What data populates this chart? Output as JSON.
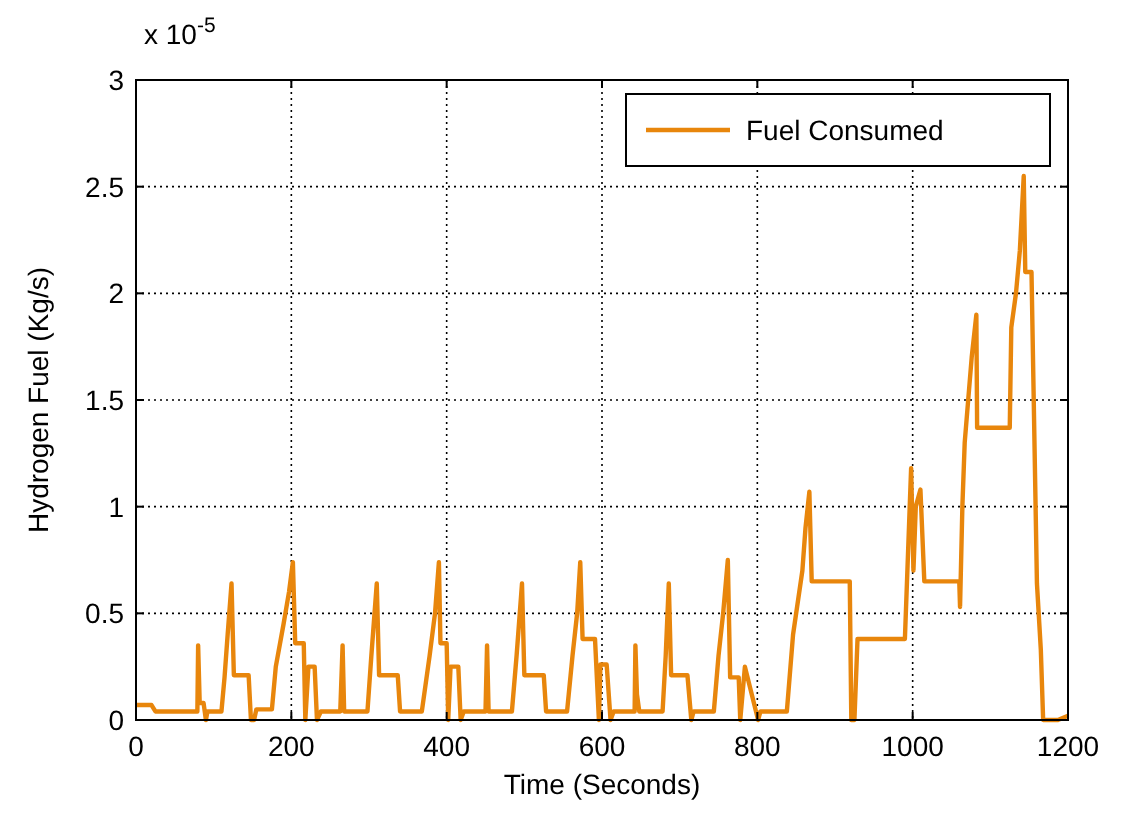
{
  "chart_data": {
    "type": "line",
    "xlabel": "Time (Seconds)",
    "ylabel": "Hydrogen Fuel (Kg/s)",
    "annotations": [
      "x 10$^{-5}$"
    ],
    "xlim": [
      0,
      1200
    ],
    "xticks": [
      0,
      200,
      400,
      600,
      800,
      1000,
      1200
    ],
    "ylim": [
      0,
      3
    ],
    "yticks": [
      0,
      0.5,
      1,
      1.5,
      2,
      2.5,
      3
    ],
    "grid": true,
    "legend": "top right",
    "marker": "none",
    "line_style": "solid",
    "series": [
      {
        "name": "Fuel Consumed",
        "color": "#e8860c",
        "x": [
          0,
          20,
          25,
          79,
          80,
          82,
          87,
          90,
          92,
          110,
          114,
          118,
          123,
          126,
          145,
          148,
          152,
          155,
          175,
          180,
          190,
          197,
          202,
          205,
          216,
          218,
          222,
          230,
          233,
          238,
          263,
          266,
          268,
          298,
          303,
          310,
          313,
          337,
          340,
          368,
          378,
          385,
          390,
          392,
          400,
          402,
          405,
          415,
          418,
          422,
          450,
          452,
          454,
          484,
          490,
          497,
          500,
          525,
          528,
          555,
          562,
          568,
          572,
          575,
          591,
          596,
          598,
          606,
          611,
          615,
          642,
          643,
          645,
          648,
          678,
          682,
          686,
          689,
          710,
          715,
          718,
          744,
          750,
          756,
          762,
          765,
          776,
          778,
          784,
          801,
          804,
          838,
          846,
          858,
          862,
          867,
          870,
          919,
          921,
          925,
          929,
          990,
          998,
          1001,
          1004,
          1010,
          1015,
          1060,
          1061,
          1064,
          1067,
          1076,
          1082,
          1083,
          1125,
          1127,
          1133,
          1138,
          1143,
          1145,
          1153,
          1160,
          1165,
          1168,
          1187,
          1200
        ],
        "values": [
          0.07,
          0.07,
          0.04,
          0.04,
          0.35,
          0.08,
          0.08,
          0,
          0.04,
          0.04,
          0.2,
          0.4,
          0.64,
          0.21,
          0.21,
          0,
          0,
          0.05,
          0.05,
          0.25,
          0.45,
          0.6,
          0.74,
          0.36,
          0.36,
          0,
          0.25,
          0.25,
          0,
          0.04,
          0.04,
          0.35,
          0.04,
          0.04,
          0.3,
          0.64,
          0.21,
          0.21,
          0.04,
          0.04,
          0.3,
          0.5,
          0.74,
          0.36,
          0.36,
          0,
          0.25,
          0.25,
          0,
          0.04,
          0.04,
          0.35,
          0.04,
          0.04,
          0.3,
          0.64,
          0.21,
          0.21,
          0.04,
          0.04,
          0.3,
          0.5,
          0.74,
          0.38,
          0.38,
          0,
          0.26,
          0.26,
          0,
          0.04,
          0.04,
          0.35,
          0.12,
          0.04,
          0.04,
          0.3,
          0.64,
          0.21,
          0.21,
          0,
          0.04,
          0.04,
          0.3,
          0.5,
          0.75,
          0.2,
          0.2,
          0,
          0.25,
          0,
          0.04,
          0.04,
          0.4,
          0.7,
          0.9,
          1.07,
          0.65,
          0.65,
          0,
          0,
          0.38,
          0.38,
          1.18,
          0.7,
          1.0,
          1.08,
          0.65,
          0.65,
          0.53,
          1.0,
          1.3,
          1.7,
          1.9,
          1.37,
          1.37,
          1.84,
          2.0,
          2.2,
          2.55,
          2.1,
          2.1,
          0.64,
          0.33,
          0,
          0,
          0.02
        ]
      }
    ]
  }
}
